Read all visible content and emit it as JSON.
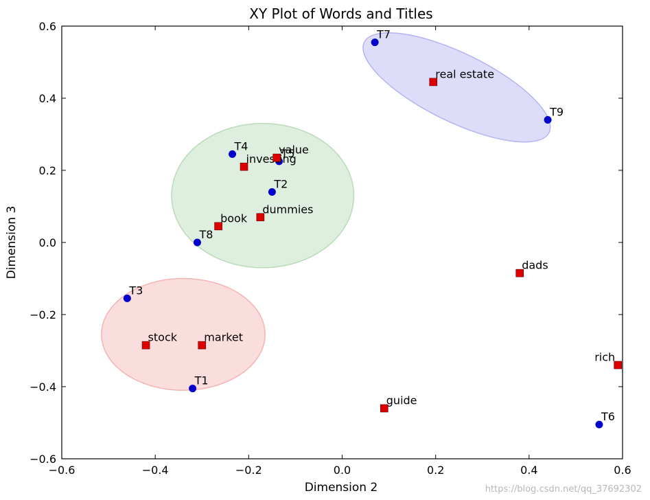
{
  "chart_data": {
    "type": "scatter",
    "title": "XY Plot of Words and Titles",
    "xlabel": "Dimension 2",
    "ylabel": "Dimension 3",
    "xlim": [
      -0.6,
      0.6
    ],
    "ylim": [
      -0.6,
      0.6
    ],
    "xticks": [
      -0.6,
      -0.4,
      -0.2,
      0.0,
      0.2,
      0.4,
      0.6
    ],
    "yticks": [
      -0.6,
      -0.4,
      -0.2,
      0.0,
      0.2,
      0.4,
      0.6
    ],
    "xtick_labels": [
      "−0.6",
      "−0.4",
      "−0.2",
      "0.0",
      "0.2",
      "0.4",
      "0.6"
    ],
    "ytick_labels": [
      "−0.6",
      "−0.4",
      "−0.2",
      "0.0",
      "0.2",
      "0.4",
      "0.6"
    ],
    "grid": false,
    "series": [
      {
        "marker": "circle",
        "color": "#0000cc",
        "points": [
          {
            "label": "T1",
            "x": -0.32,
            "y": -0.405
          },
          {
            "label": "T2",
            "x": -0.15,
            "y": 0.14
          },
          {
            "label": "T3",
            "x": -0.46,
            "y": -0.155
          },
          {
            "label": "T4",
            "x": -0.235,
            "y": 0.245
          },
          {
            "label": "T5",
            "x": -0.135,
            "y": 0.225
          },
          {
            "label": "T6",
            "x": 0.55,
            "y": -0.505
          },
          {
            "label": "T7",
            "x": 0.07,
            "y": 0.555
          },
          {
            "label": "T8",
            "x": -0.31,
            "y": 0.0
          },
          {
            "label": "T9",
            "x": 0.44,
            "y": 0.34
          }
        ]
      },
      {
        "marker": "square",
        "color": "#dd0000",
        "points": [
          {
            "label": "book",
            "x": -0.265,
            "y": 0.045
          },
          {
            "label": "dads",
            "x": 0.38,
            "y": -0.085
          },
          {
            "label": "dummies",
            "x": -0.175,
            "y": 0.07
          },
          {
            "label": "guide",
            "x": 0.09,
            "y": -0.46
          },
          {
            "label": "investing",
            "x": -0.21,
            "y": 0.21
          },
          {
            "label": "market",
            "x": -0.3,
            "y": -0.285
          },
          {
            "label": "real estate",
            "x": 0.195,
            "y": 0.445
          },
          {
            "label": "rich",
            "x": 0.59,
            "y": -0.34
          },
          {
            "label": "stock",
            "x": -0.42,
            "y": -0.285
          },
          {
            "label": "value",
            "x": -0.14,
            "y": 0.235
          }
        ]
      }
    ],
    "clusters": [
      {
        "color": "#f4b3b3",
        "center": [
          -0.34,
          -0.255
        ],
        "radii": [
          0.175,
          0.155
        ],
        "angle": 0
      },
      {
        "color": "#b9dbb9",
        "center": [
          -0.17,
          0.13
        ],
        "radii": [
          0.195,
          0.2
        ],
        "angle": 0
      },
      {
        "color": "#b3b3f2",
        "center": [
          0.245,
          0.43
        ],
        "radii": [
          0.22,
          0.095
        ],
        "angle": 26
      }
    ]
  },
  "watermark": "https://blog.csdn.net/qq_37692302"
}
